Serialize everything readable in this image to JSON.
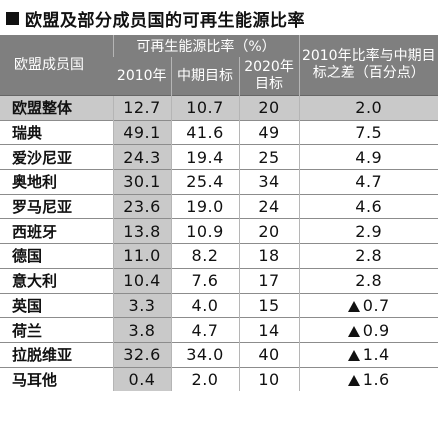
{
  "title": "欧盟及部分成员国的可再生能源比率",
  "headers": {
    "member": "欧盟成员国",
    "group": "可再生能源比率（%）",
    "y2010": "2010年",
    "mid": "中期目标",
    "y2020": "2020年目标",
    "diff": "2010年比率与中期目标之差（百分点）"
  },
  "rows": [
    {
      "name": "欧盟整体",
      "v2010": "12.7",
      "mid": "10.7",
      "t2020": "20",
      "diff": "2.0",
      "negative": false
    },
    {
      "name": "瑞典",
      "v2010": "49.1",
      "mid": "41.6",
      "t2020": "49",
      "diff": "7.5",
      "negative": false
    },
    {
      "name": "爱沙尼亚",
      "v2010": "24.3",
      "mid": "19.4",
      "t2020": "25",
      "diff": "4.9",
      "negative": false
    },
    {
      "name": "奥地利",
      "v2010": "30.1",
      "mid": "25.4",
      "t2020": "34",
      "diff": "4.7",
      "negative": false
    },
    {
      "name": "罗马尼亚",
      "v2010": "23.6",
      "mid": "19.0",
      "t2020": "24",
      "diff": "4.6",
      "negative": false
    },
    {
      "name": "西班牙",
      "v2010": "13.8",
      "mid": "10.9",
      "t2020": "20",
      "diff": "2.9",
      "negative": false
    },
    {
      "name": "德国",
      "v2010": "11.0",
      "mid": "8.2",
      "t2020": "18",
      "diff": "2.8",
      "negative": false
    },
    {
      "name": "意大利",
      "v2010": "10.4",
      "mid": "7.6",
      "t2020": "17",
      "diff": "2.8",
      "negative": false
    },
    {
      "name": "英国",
      "v2010": "3.3",
      "mid": "4.0",
      "t2020": "15",
      "diff": "0.7",
      "negative": true
    },
    {
      "name": "荷兰",
      "v2010": "3.8",
      "mid": "4.7",
      "t2020": "14",
      "diff": "0.9",
      "negative": true
    },
    {
      "name": "拉脱维亚",
      "v2010": "32.6",
      "mid": "34.0",
      "t2020": "40",
      "diff": "1.4",
      "negative": true
    },
    {
      "name": "马耳他",
      "v2010": "0.4",
      "mid": "2.0",
      "t2020": "10",
      "diff": "1.6",
      "negative": true
    }
  ],
  "chart_data": {
    "type": "table",
    "title": "欧盟及部分成员国的可再生能源比率",
    "columns": [
      "欧盟成员国",
      "2010年",
      "中期目标",
      "2020年目标",
      "2010年比率与中期目标之差（百分点）"
    ],
    "rows": [
      [
        "欧盟整体",
        12.7,
        10.7,
        20,
        2.0
      ],
      [
        "瑞典",
        49.1,
        41.6,
        49,
        7.5
      ],
      [
        "爱沙尼亚",
        24.3,
        19.4,
        25,
        4.9
      ],
      [
        "奥地利",
        30.1,
        25.4,
        34,
        4.7
      ],
      [
        "罗马尼亚",
        23.6,
        19.0,
        24,
        4.6
      ],
      [
        "西班牙",
        13.8,
        10.9,
        20,
        2.9
      ],
      [
        "德国",
        11.0,
        8.2,
        18,
        2.8
      ],
      [
        "意大利",
        10.4,
        7.6,
        17,
        2.8
      ],
      [
        "英国",
        3.3,
        4.0,
        15,
        -0.7
      ],
      [
        "荷兰",
        3.8,
        4.7,
        14,
        -0.9
      ],
      [
        "拉脱维亚",
        32.6,
        34.0,
        40,
        -1.4
      ],
      [
        "马耳他",
        0.4,
        2.0,
        10,
        -1.6
      ]
    ]
  }
}
